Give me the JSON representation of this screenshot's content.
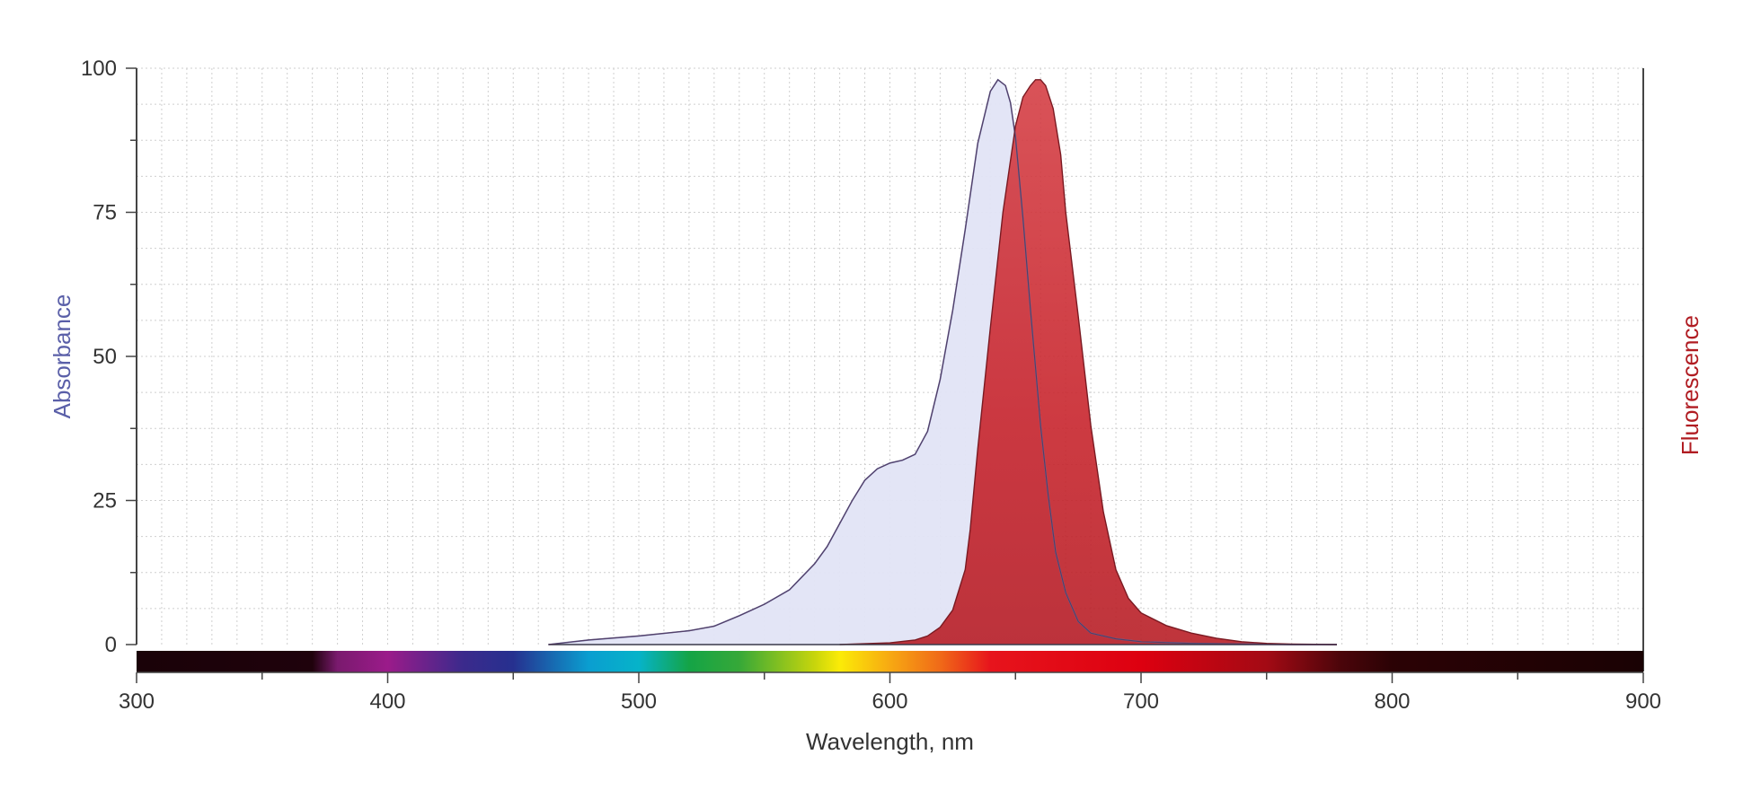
{
  "chart_data": {
    "type": "area",
    "xlabel": "Wavelength, nm",
    "ylabel_left": "Absorbance",
    "ylabel_right": "Fluorescence",
    "xlim": [
      300,
      900
    ],
    "ylim": [
      0,
      100
    ],
    "x_ticks": [
      300,
      400,
      500,
      600,
      700,
      800,
      900
    ],
    "y_ticks": [
      0,
      25,
      50,
      75,
      100
    ],
    "grid": true,
    "legend": "none",
    "colors": {
      "absorbance_fill": "#e1e4f6",
      "absorbance_line": "#6a73ab",
      "absorbance_label": "#5a5fa8",
      "fluorescence_fill": "#c8252d",
      "fluorescence_line": "#7a1a22",
      "fluorescence_label": "#b01c22",
      "axis": "#444444",
      "grid": "#cfcfcf"
    },
    "spectrum_bar": [
      {
        "wl": 300,
        "color": "#1a0208"
      },
      {
        "wl": 370,
        "color": "#1f020c"
      },
      {
        "wl": 380,
        "color": "#7a1a6e"
      },
      {
        "wl": 400,
        "color": "#9b1b8a"
      },
      {
        "wl": 430,
        "color": "#3b2a8c"
      },
      {
        "wl": 450,
        "color": "#26308f"
      },
      {
        "wl": 480,
        "color": "#0a9ed0"
      },
      {
        "wl": 500,
        "color": "#06b3c9"
      },
      {
        "wl": 520,
        "color": "#14a446"
      },
      {
        "wl": 540,
        "color": "#36a838"
      },
      {
        "wl": 570,
        "color": "#c7d50c"
      },
      {
        "wl": 580,
        "color": "#fbeb07"
      },
      {
        "wl": 600,
        "color": "#f7a912"
      },
      {
        "wl": 620,
        "color": "#f06a18"
      },
      {
        "wl": 640,
        "color": "#e7141c"
      },
      {
        "wl": 700,
        "color": "#dd0010"
      },
      {
        "wl": 750,
        "color": "#a30a14"
      },
      {
        "wl": 780,
        "color": "#4a050a"
      },
      {
        "wl": 800,
        "color": "#2b0205"
      },
      {
        "wl": 900,
        "color": "#1a0204"
      }
    ],
    "series": [
      {
        "name": "Absorbance",
        "x": [
          464,
          480,
          500,
          520,
          530,
          540,
          550,
          560,
          570,
          575,
          580,
          585,
          590,
          595,
          600,
          605,
          610,
          615,
          620,
          625,
          630,
          635,
          640,
          643,
          646,
          648,
          650,
          653,
          656,
          660,
          663,
          666,
          670,
          675,
          680,
          690,
          700,
          720,
          740,
          760,
          778
        ],
        "y": [
          0,
          0.8,
          1.5,
          2.4,
          3.2,
          5,
          7,
          9.5,
          14,
          17,
          21,
          25,
          28.5,
          30.5,
          31.5,
          32,
          33,
          37,
          46,
          58,
          72,
          87,
          96,
          98,
          97,
          94,
          88,
          74,
          58,
          38,
          26,
          16,
          9,
          4,
          2,
          1,
          0.5,
          0.2,
          0.1,
          0,
          0
        ]
      },
      {
        "name": "Fluorescence",
        "x": [
          580,
          600,
          610,
          615,
          620,
          625,
          630,
          632,
          635,
          640,
          645,
          650,
          653,
          656,
          658,
          660,
          662,
          665,
          668,
          670,
          675,
          680,
          685,
          690,
          695,
          700,
          710,
          720,
          730,
          740,
          750,
          760,
          778
        ],
        "y": [
          0,
          0.3,
          0.8,
          1.5,
          3,
          6,
          13,
          20,
          34,
          55,
          75,
          90,
          95,
          97,
          98,
          98,
          97,
          93,
          85,
          75,
          57,
          38,
          23,
          13,
          8,
          5.5,
          3.3,
          2,
          1.1,
          0.5,
          0.2,
          0.1,
          0
        ]
      }
    ]
  }
}
